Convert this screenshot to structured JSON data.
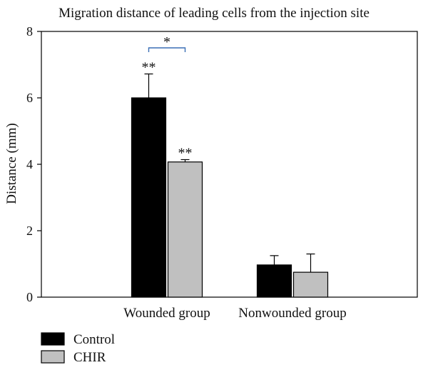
{
  "chart_data": {
    "type": "bar",
    "title": "Migration distance of leading cells from the injection site",
    "xlabel": "",
    "ylabel": "Distance (mm)",
    "ylim": [
      0,
      8
    ],
    "yticks": [
      "0",
      "2",
      "4",
      "6",
      "8"
    ],
    "categories": [
      "Wounded group",
      "Nonwounded group"
    ],
    "series": [
      {
        "name": "Control",
        "color": "#000000",
        "values": [
          6.0,
          0.97
        ],
        "errors": [
          0.72,
          0.28
        ],
        "annotations": [
          "**",
          ""
        ]
      },
      {
        "name": "CHIR",
        "color": "#c0c0c0",
        "values": [
          4.07,
          0.75
        ],
        "errors": [
          0.07,
          0.55
        ],
        "annotations": [
          "**",
          ""
        ]
      }
    ],
    "comparison": {
      "label": "*",
      "category": "Wounded group",
      "between": [
        "Control",
        "CHIR"
      ]
    },
    "legend": "bottom-left",
    "grid": false
  }
}
